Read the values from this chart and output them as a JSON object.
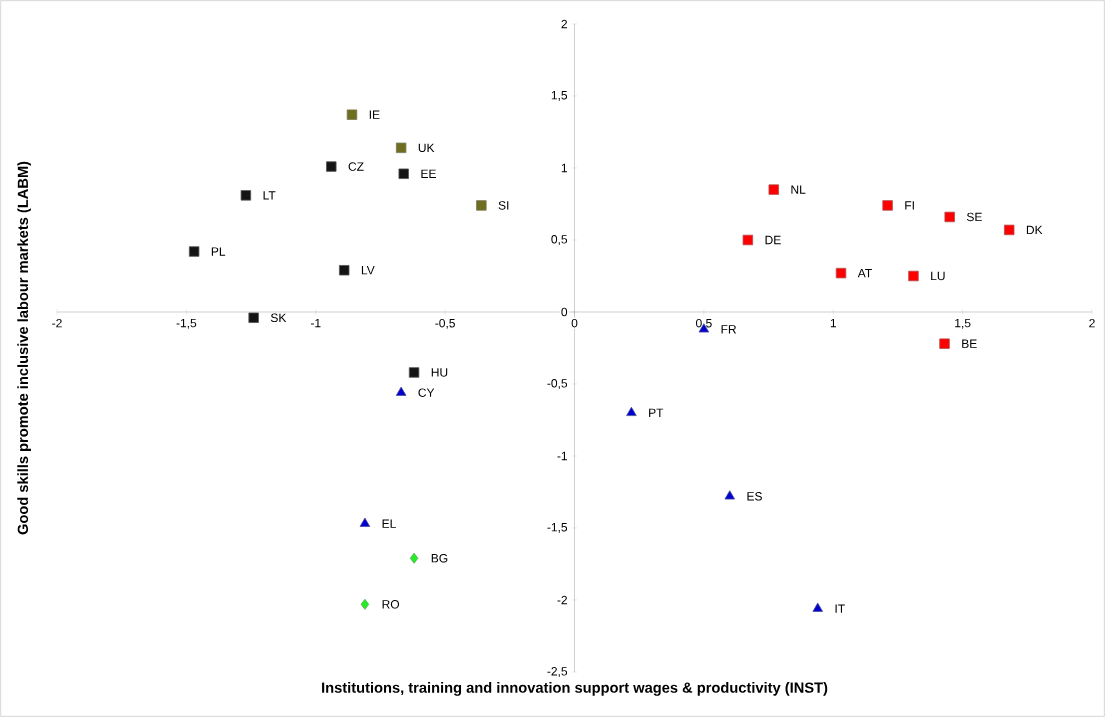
{
  "chart_data": {
    "type": "scatter",
    "xlabel": "Institutions, training and innovation support wages & productivity (INST)",
    "ylabel": "Good skills promote inclusive labour markets (LABM)",
    "xlim": [
      -2,
      2
    ],
    "ylim": [
      -2.5,
      2
    ],
    "xticks": [
      -2,
      {
        "value": -1.5,
        "label": "-1,5"
      },
      -1,
      {
        "value": -0.5,
        "label": "-0,5"
      },
      0,
      {
        "value": 0.5,
        "label": "0,5"
      },
      1,
      {
        "value": 1.5,
        "label": "1,5"
      },
      2
    ],
    "yticks": [
      {
        "value": -2.5,
        "label": "-2,5"
      },
      -2,
      {
        "value": -1.5,
        "label": "-1,5"
      },
      -1,
      {
        "value": -0.5,
        "label": "-0,5"
      },
      0,
      {
        "value": 0.5,
        "label": "0,5"
      },
      1,
      {
        "value": 1.5,
        "label": "1,5"
      },
      2
    ],
    "series": [
      {
        "color": "#6e6e1e",
        "marker": "square",
        "x": [
          -0.86,
          -0.67,
          -0.36
        ],
        "values": [
          1.37,
          1.14,
          0.74
        ]
      },
      {
        "color": "#141414",
        "marker": "square",
        "x": [
          -0.94,
          -0.66,
          -1.27,
          -1.47,
          -0.89,
          -1.24,
          -0.62
        ],
        "values": [
          1.01,
          0.96,
          0.81,
          0.42,
          0.29,
          -0.04,
          -0.42
        ]
      },
      {
        "color": "#ff0000",
        "marker": "square",
        "x": [
          0.77,
          1.21,
          1.45,
          1.68,
          0.67,
          1.03,
          1.31,
          1.43
        ],
        "values": [
          0.85,
          0.74,
          0.66,
          0.57,
          0.5,
          0.27,
          0.25,
          -0.22
        ]
      },
      {
        "color": "#0000cc",
        "marker": "triangle",
        "x": [
          0.5,
          -0.67,
          0.22,
          0.6,
          -0.81,
          0.94
        ],
        "values": [
          -0.12,
          -0.56,
          -0.7,
          -1.28,
          -1.47,
          -2.06
        ]
      },
      {
        "color": "#22ee22",
        "marker": "diamond",
        "x": [
          -0.62,
          -0.81
        ],
        "values": [
          -1.71,
          -2.03
        ]
      }
    ],
    "annotations": [
      {
        "text": "IE",
        "x": -0.86,
        "y": 1.37
      },
      {
        "text": "UK",
        "x": -0.67,
        "y": 1.14
      },
      {
        "text": "SI",
        "x": -0.36,
        "y": 0.74
      },
      {
        "text": "CZ",
        "x": -0.94,
        "y": 1.01
      },
      {
        "text": "EE",
        "x": -0.66,
        "y": 0.96
      },
      {
        "text": "LT",
        "x": -1.27,
        "y": 0.81
      },
      {
        "text": "PL",
        "x": -1.47,
        "y": 0.42
      },
      {
        "text": "LV",
        "x": -0.89,
        "y": 0.29
      },
      {
        "text": "SK",
        "x": -1.24,
        "y": -0.04
      },
      {
        "text": "HU",
        "x": -0.62,
        "y": -0.42
      },
      {
        "text": "NL",
        "x": 0.77,
        "y": 0.85
      },
      {
        "text": "FI",
        "x": 1.21,
        "y": 0.74
      },
      {
        "text": "SE",
        "x": 1.45,
        "y": 0.66
      },
      {
        "text": "DK",
        "x": 1.68,
        "y": 0.57
      },
      {
        "text": "DE",
        "x": 0.67,
        "y": 0.5
      },
      {
        "text": "AT",
        "x": 1.03,
        "y": 0.27
      },
      {
        "text": "LU",
        "x": 1.31,
        "y": 0.25
      },
      {
        "text": "BE",
        "x": 1.43,
        "y": -0.22
      },
      {
        "text": "FR",
        "x": 0.5,
        "y": -0.12
      },
      {
        "text": "CY",
        "x": -0.67,
        "y": -0.56
      },
      {
        "text": "PT",
        "x": 0.22,
        "y": -0.7
      },
      {
        "text": "ES",
        "x": 0.6,
        "y": -1.28
      },
      {
        "text": "EL",
        "x": -0.81,
        "y": -1.47
      },
      {
        "text": "IT",
        "x": 0.94,
        "y": -2.06
      },
      {
        "text": "BG",
        "x": -0.62,
        "y": -1.71
      },
      {
        "text": "RO",
        "x": -0.81,
        "y": -2.03
      }
    ]
  }
}
